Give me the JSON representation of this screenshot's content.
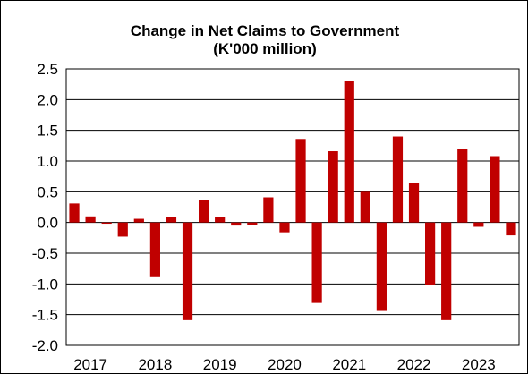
{
  "chart_data": {
    "type": "bar",
    "title": "Change in Net Claims to Government",
    "subtitle": "(K'000 million)",
    "xlabel": "",
    "ylabel": "",
    "ylim": [
      -2.0,
      2.5
    ],
    "yticks": [
      "2.5",
      "2.0",
      "1.5",
      "1.0",
      "0.5",
      "0.0",
      "-0.5",
      "-1.0",
      "-1.5",
      "-2.0"
    ],
    "x_tick_labels": [
      "2017",
      "2018",
      "2019",
      "2020",
      "2021",
      "2022",
      "2023"
    ],
    "grid": true,
    "bar_color": "#c00000",
    "values": [
      0.31,
      0.1,
      -0.02,
      -0.23,
      0.06,
      -0.89,
      0.09,
      -1.59,
      0.36,
      0.09,
      -0.05,
      -0.04,
      0.41,
      -0.16,
      1.36,
      -1.31,
      1.16,
      2.3,
      0.5,
      -1.44,
      1.4,
      0.64,
      -1.02,
      -1.59,
      1.19,
      -0.07,
      1.08,
      -0.21
    ]
  }
}
